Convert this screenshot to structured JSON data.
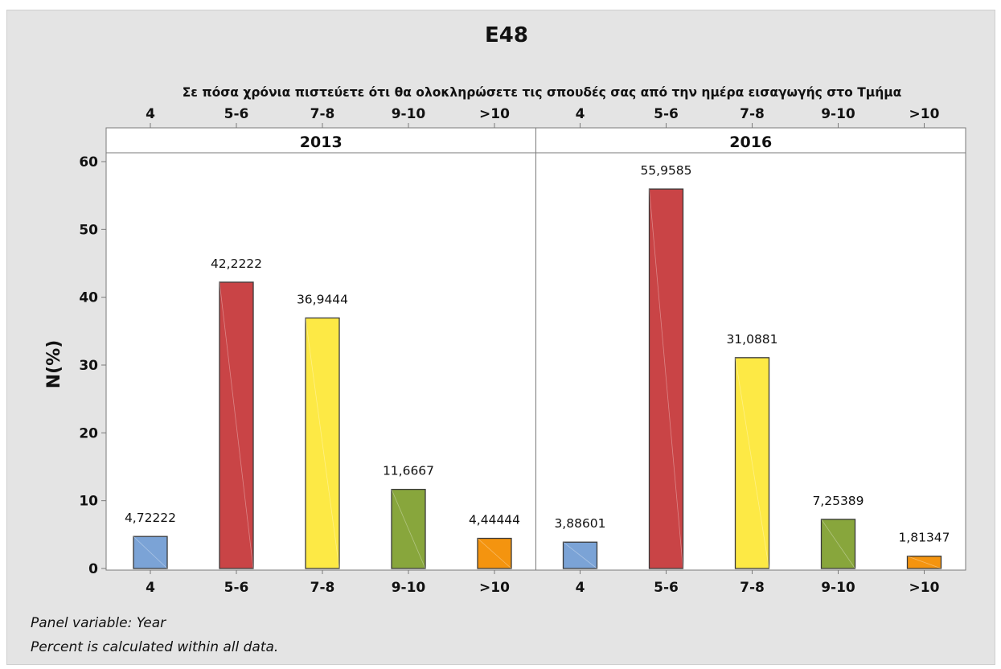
{
  "chart_data": {
    "type": "bar",
    "title": "E48",
    "xlabel": "Σε πόσα χρόνια πιστεύετε ότι θα ολοκληρώσετε τις σπουδές σας από την ημέρα εισαγωγής στο Τμήμα",
    "ylabel": "N(%)",
    "ylim": [
      0,
      60
    ],
    "yticks": [
      0,
      10,
      20,
      30,
      40,
      50,
      60
    ],
    "categories": [
      "4",
      "5-6",
      "7-8",
      "9-10",
      ">10"
    ],
    "colors": [
      "#7ba3d6",
      "#c94446",
      "#fde945",
      "#88a63c",
      "#f4940f"
    ],
    "panels": [
      {
        "name": "2013",
        "values": [
          4.72222,
          42.2222,
          36.9444,
          11.6667,
          4.44444
        ],
        "labels": [
          "4,72222",
          "42,2222",
          "36,9444",
          "11,6667",
          "4,44444"
        ]
      },
      {
        "name": "2016",
        "values": [
          3.88601,
          55.9585,
          31.0881,
          7.25389,
          1.81347
        ],
        "labels": [
          "3,88601",
          "55,9585",
          "31,0881",
          "7,25389",
          "1,81347"
        ]
      }
    ],
    "grid": false,
    "notes": [
      "Panel variable: Year",
      "Percent is calculated within all data."
    ]
  }
}
